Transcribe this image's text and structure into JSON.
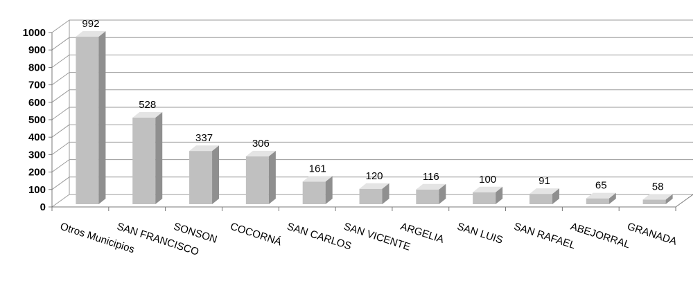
{
  "chart_data": {
    "type": "bar",
    "categories": [
      "Otros Municipios",
      "SAN FRANCISCO",
      "SONSON",
      "COCORNÁ",
      "SAN CARLOS",
      "SAN VICENTE",
      "ARGELIA",
      "SAN LUIS",
      "SAN RAFAEL",
      "ABEJORRAL",
      "GRANADA"
    ],
    "values": [
      992,
      528,
      337,
      306,
      161,
      120,
      116,
      100,
      91,
      65,
      58
    ],
    "ylim": [
      0,
      1000
    ],
    "yticks": [
      0,
      100,
      200,
      300,
      400,
      500,
      600,
      700,
      800,
      900,
      1000
    ],
    "grid": true,
    "style": "3d-column",
    "colors": {
      "bar_front": "#c0c0c0",
      "bar_side": "#8f8f8f",
      "bar_top": "#e4e4e4",
      "grid": "#9a9a9a",
      "axis": "#777777"
    }
  }
}
